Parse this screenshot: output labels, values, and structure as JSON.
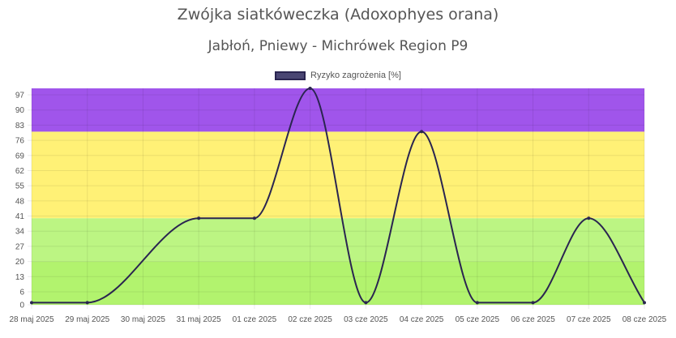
{
  "chart_data": {
    "type": "line",
    "title": "Zwójka siatkóweczka (Adoxophyes orana)",
    "subtitle": "Jabłoń, Pniewy - Michrówek Region P9",
    "legend": "Ryzyko zagrożenia [%]",
    "legend_position": "top",
    "categories": [
      "28 maj 2025",
      "29 maj 2025",
      "30 maj 2025",
      "31 maj 2025",
      "01 cze 2025",
      "02 cze 2025",
      "03 cze 2025",
      "04 cze 2025",
      "05 cze 2025",
      "06 cze 2025",
      "07 cze 2025",
      "08 cze 2025"
    ],
    "x": [
      0,
      1,
      3,
      4,
      5,
      6,
      7,
      8,
      9,
      10,
      11
    ],
    "values": [
      1,
      1,
      40,
      40,
      100,
      1,
      80,
      1,
      1,
      40,
      1
    ],
    "yticks": [
      0,
      6,
      13,
      20,
      27,
      34,
      41,
      48,
      55,
      62,
      69,
      76,
      83,
      90,
      97
    ],
    "ylim": [
      0,
      100
    ],
    "bands": [
      {
        "from": 0,
        "to": 20,
        "color": "#b2f36e"
      },
      {
        "from": 20,
        "to": 40,
        "color": "#bcf583"
      },
      {
        "from": 40,
        "to": 80,
        "color": "#fff176"
      },
      {
        "from": 80,
        "to": 100,
        "color": "#a055eb"
      }
    ],
    "line_color": "#2a2550",
    "grid": true
  }
}
